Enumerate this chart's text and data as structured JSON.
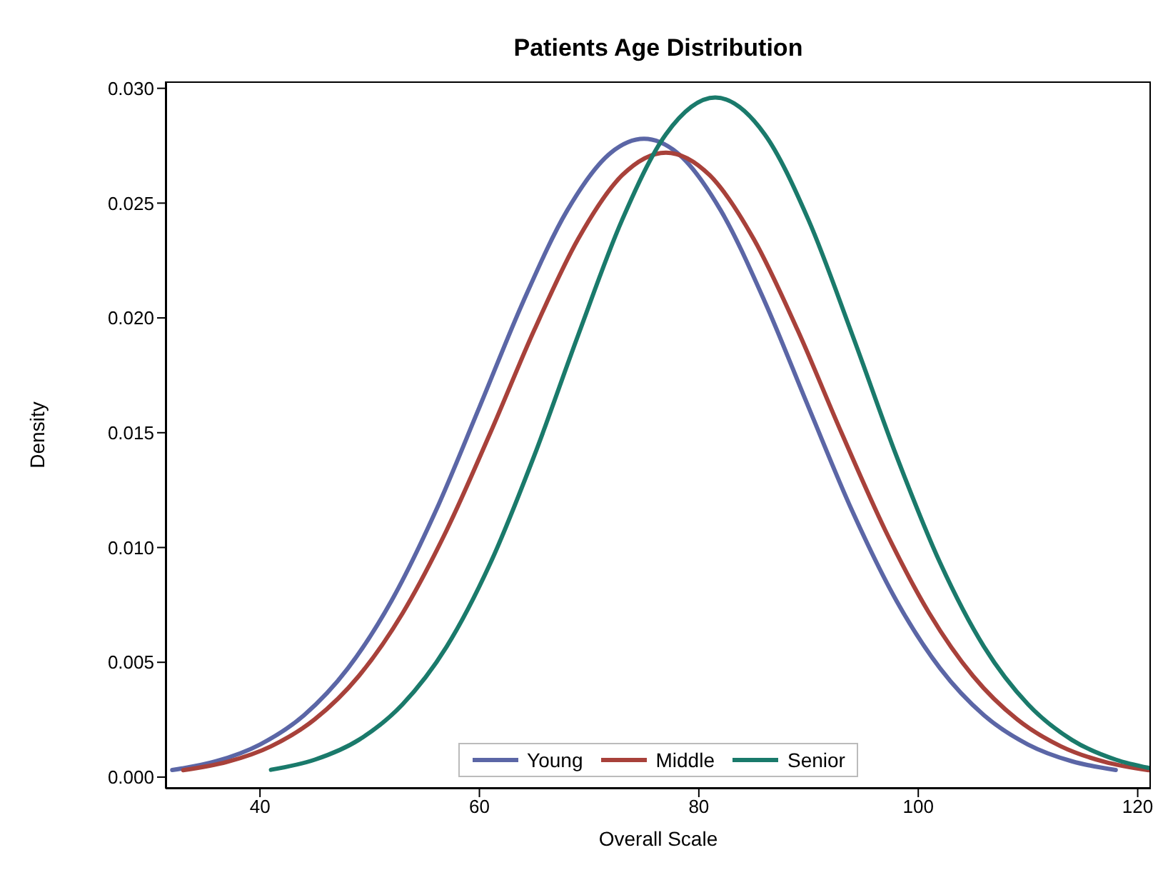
{
  "chart_data": {
    "type": "line",
    "title": "Patients Age Distribution",
    "xlabel": "Overall Scale",
    "ylabel": "Density",
    "xlim": [
      31.4,
      121.2
    ],
    "xticks": [
      40,
      60,
      80,
      100,
      120
    ],
    "ylim": [
      -0.0005,
      0.0303
    ],
    "yticks": [
      {
        "value": 0,
        "label": "0.000"
      },
      {
        "value": 0.005,
        "label": "0.005"
      },
      {
        "value": 0.01,
        "label": "0.010"
      },
      {
        "value": 0.015,
        "label": "0.015"
      },
      {
        "value": 0.02,
        "label": "0.020"
      },
      {
        "value": 0.025,
        "label": "0.025"
      },
      {
        "value": 0.03,
        "label": "0.030"
      }
    ],
    "grid": false,
    "legend": "bottom",
    "marker": "none",
    "line_style": "solid",
    "series": [
      {
        "name": "Young",
        "color": "#5b66a6",
        "x": [
          32,
          36,
          40,
          44,
          48,
          52,
          56,
          60,
          64,
          68,
          72,
          75,
          78,
          82,
          86,
          90,
          94,
          98,
          102,
          106,
          110,
          114,
          118
        ],
        "values": [
          0.00031,
          0.00069,
          0.00142,
          0.00269,
          0.00473,
          0.00769,
          0.01157,
          0.01611,
          0.02072,
          0.02468,
          0.0272,
          0.0278,
          0.0272,
          0.02468,
          0.02072,
          0.01611,
          0.01157,
          0.00769,
          0.00473,
          0.00269,
          0.00142,
          0.00069,
          0.00031
        ]
      },
      {
        "name": "Middle",
        "color": "#a8413a",
        "x": [
          33,
          37,
          41,
          45,
          49,
          53,
          57,
          61,
          65,
          69,
          73,
          77,
          81,
          85,
          89,
          93,
          97,
          101,
          105,
          109,
          113,
          117,
          121
        ],
        "values": [
          0.0003,
          0.00066,
          0.00134,
          0.00252,
          0.0044,
          0.00714,
          0.01074,
          0.015,
          0.01947,
          0.02344,
          0.02621,
          0.0272,
          0.02621,
          0.02344,
          0.01947,
          0.015,
          0.01074,
          0.00714,
          0.0044,
          0.00252,
          0.00134,
          0.00066,
          0.0003
        ]
      },
      {
        "name": "Senior",
        "color": "#1a7a6b",
        "x": [
          41,
          45,
          49,
          53,
          57,
          61,
          65,
          69,
          73,
          77,
          81.5,
          86,
          90,
          94,
          98,
          102,
          106,
          110,
          114,
          118,
          121
        ],
        "values": [
          0.00032,
          0.00076,
          0.00162,
          0.00317,
          0.00567,
          0.00932,
          0.014,
          0.01925,
          0.02426,
          0.028,
          0.0296,
          0.028,
          0.02426,
          0.01925,
          0.014,
          0.00932,
          0.00567,
          0.00317,
          0.00162,
          0.00076,
          0.0004
        ]
      }
    ]
  }
}
